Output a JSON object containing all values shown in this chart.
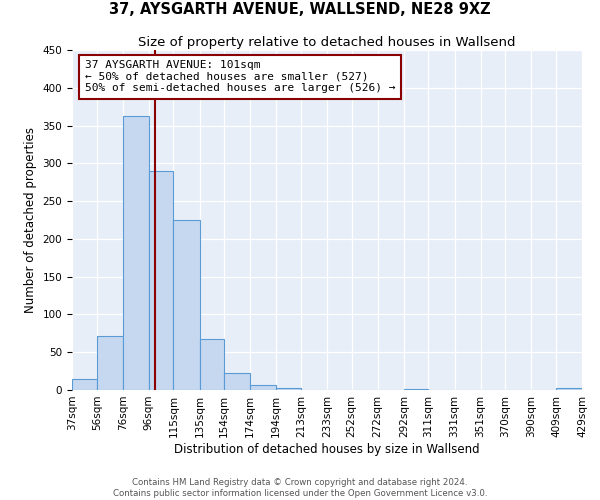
{
  "title": "37, AYSGARTH AVENUE, WALLSEND, NE28 9XZ",
  "subtitle": "Size of property relative to detached houses in Wallsend",
  "xlabel": "Distribution of detached houses by size in Wallsend",
  "ylabel": "Number of detached properties",
  "bin_edges": [
    37,
    56,
    76,
    96,
    115,
    135,
    154,
    174,
    194,
    213,
    233,
    252,
    272,
    292,
    311,
    331,
    351,
    370,
    390,
    409,
    429
  ],
  "bin_labels": [
    "37sqm",
    "56sqm",
    "76sqm",
    "96sqm",
    "115sqm",
    "135sqm",
    "154sqm",
    "174sqm",
    "194sqm",
    "213sqm",
    "233sqm",
    "252sqm",
    "272sqm",
    "292sqm",
    "311sqm",
    "331sqm",
    "351sqm",
    "370sqm",
    "390sqm",
    "409sqm",
    "429sqm"
  ],
  "counts": [
    15,
    72,
    363,
    290,
    225,
    67,
    22,
    7,
    2,
    0,
    0,
    0,
    0,
    1,
    0,
    0,
    0,
    0,
    0,
    2
  ],
  "bar_color": "#c5d8f0",
  "bar_edge_color": "#5b9bd5",
  "property_line_x": 101,
  "property_line_color": "#8b0000",
  "annotation_line1": "37 AYSGARTH AVENUE: 101sqm",
  "annotation_line2": "← 50% of detached houses are smaller (527)",
  "annotation_line3": "50% of semi-detached houses are larger (526) →",
  "annotation_box_color": "white",
  "annotation_box_edge_color": "#8b0000",
  "ylim": [
    0,
    450
  ],
  "yticks": [
    0,
    50,
    100,
    150,
    200,
    250,
    300,
    350,
    400,
    450
  ],
  "background_color": "#e8eef8",
  "footer_line1": "Contains HM Land Registry data © Crown copyright and database right 2024.",
  "footer_line2": "Contains public sector information licensed under the Open Government Licence v3.0.",
  "title_fontsize": 10.5,
  "subtitle_fontsize": 9.5,
  "annotation_fontsize": 8,
  "axis_label_fontsize": 8.5,
  "tick_fontsize": 7.5
}
